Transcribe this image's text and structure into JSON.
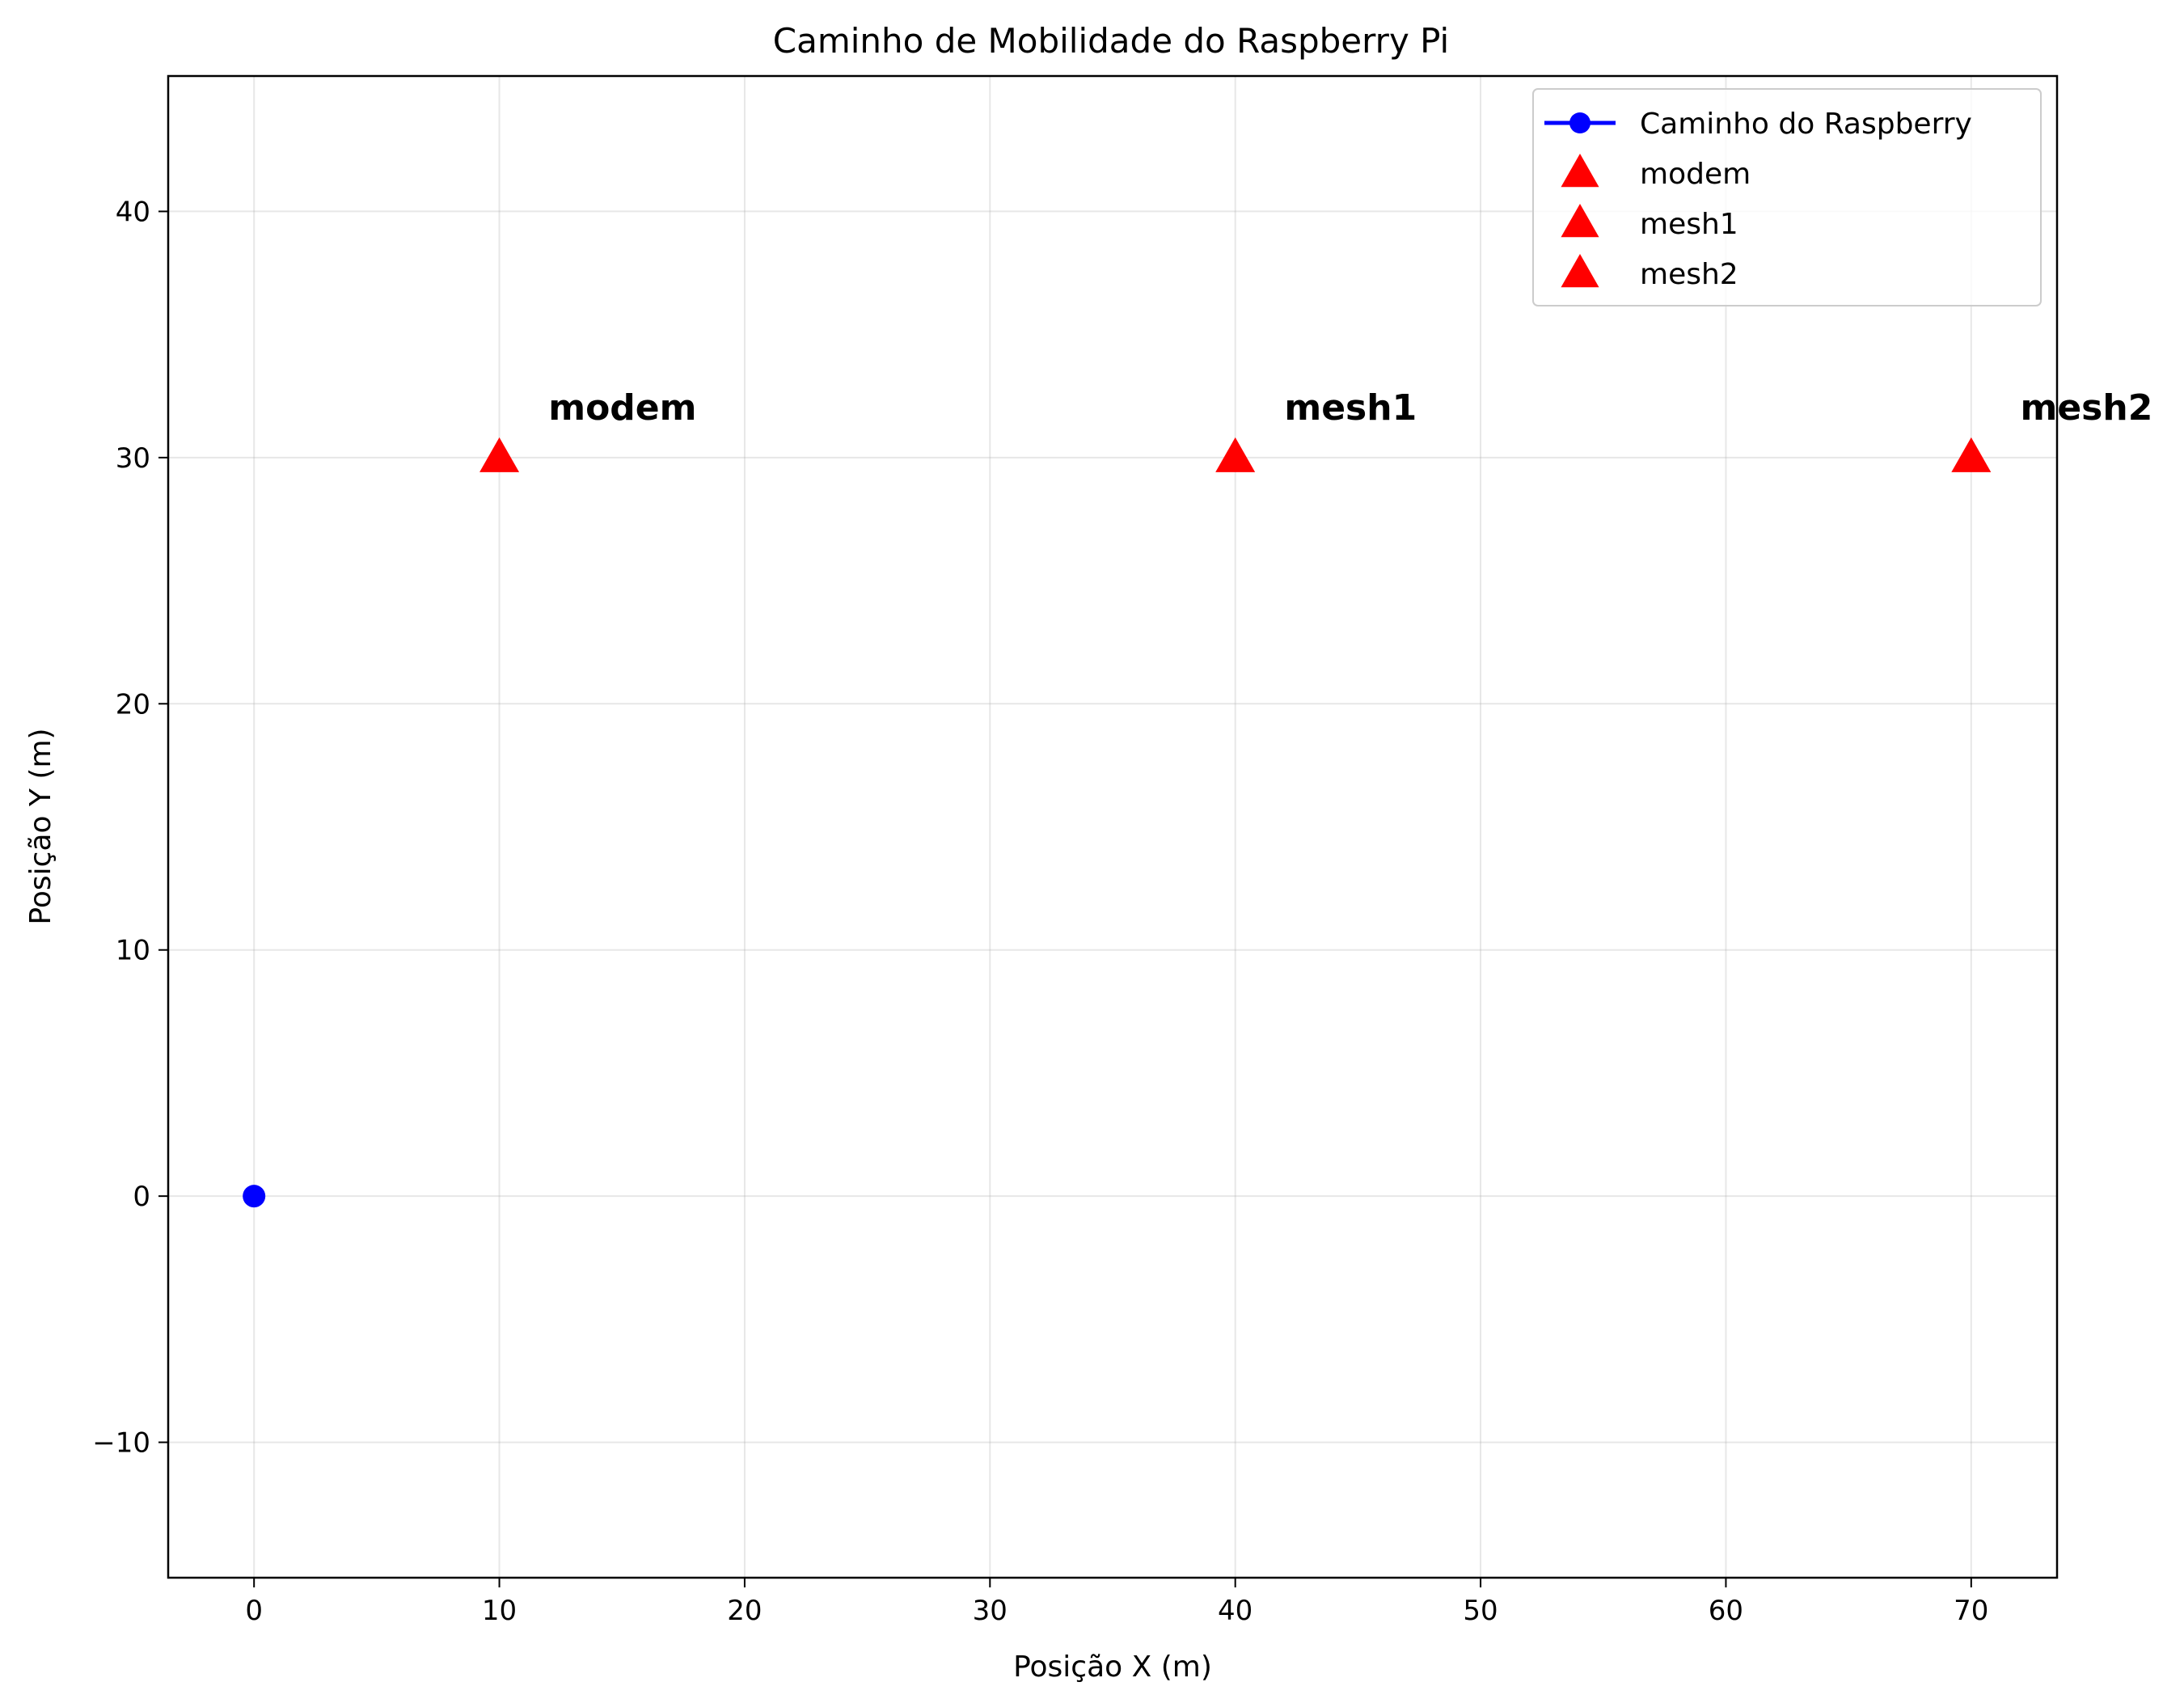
{
  "chart_data": {
    "type": "scatter",
    "title": "Caminho de Mobilidade do Raspberry Pi",
    "xlabel": "Posição X (m)",
    "ylabel": "Posição Y (m)",
    "xlim": [
      -3.5,
      73.5
    ],
    "ylim": [
      -15.5,
      45.5
    ],
    "xticks": [
      0,
      10,
      20,
      30,
      40,
      50,
      60,
      70
    ],
    "yticks": [
      -10,
      0,
      10,
      20,
      30,
      40
    ],
    "xtick_labels": [
      "0",
      "10",
      "20",
      "30",
      "40",
      "50",
      "60",
      "70"
    ],
    "ytick_labels": [
      "−10",
      "0",
      "10",
      "20",
      "30",
      "40"
    ],
    "grid": true,
    "legend_position": "top-right",
    "series": [
      {
        "name": "Caminho do Raspberry",
        "marker": "circle",
        "color": "#0000ff",
        "x": [
          0
        ],
        "y": [
          0
        ]
      },
      {
        "name": "modem",
        "marker": "triangle",
        "color": "#ff0000",
        "x": [
          10
        ],
        "y": [
          30
        ]
      },
      {
        "name": "mesh1",
        "marker": "triangle",
        "color": "#ff0000",
        "x": [
          40
        ],
        "y": [
          30
        ]
      },
      {
        "name": "mesh2",
        "marker": "triangle",
        "color": "#ff0000",
        "x": [
          70
        ],
        "y": [
          30
        ]
      }
    ],
    "annotations": [
      {
        "text": "modem",
        "x": 12,
        "y": 32
      },
      {
        "text": "mesh1",
        "x": 42,
        "y": 32
      },
      {
        "text": "mesh2",
        "x": 72,
        "y": 32
      }
    ]
  }
}
